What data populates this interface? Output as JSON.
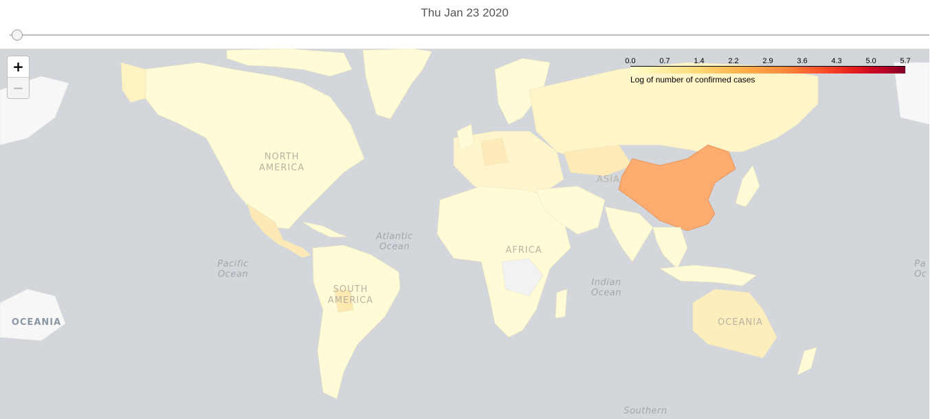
{
  "header": {
    "date": "Thu Jan 23 2020"
  },
  "slider": {
    "position_fraction": 0.0
  },
  "zoom": {
    "in_label": "+",
    "out_label": "−"
  },
  "legend": {
    "ticks": [
      "0.0",
      "0.7",
      "1.4",
      "2.2",
      "2.9",
      "3.6",
      "4.3",
      "5.0",
      "5.7"
    ],
    "caption": "Log of number of confirmed cases",
    "colors": [
      "#ffffcc",
      "#ffeda0",
      "#fed976",
      "#feb24c",
      "#fd8d3c",
      "#fc4e2a",
      "#e31a1c",
      "#bd0026",
      "#800026"
    ]
  },
  "map": {
    "ocean_color": "#d3d6da",
    "base_land_color": "#fffbd6",
    "highlight_color": "#fdab6f",
    "ocean_labels": {
      "atlantic": "Atlantic\nOcean",
      "pacific": "Pacific\nOcean",
      "indian": "Indian\nOcean",
      "southern": "Southern",
      "pacific_right": "Pa\nOc"
    },
    "continent_labels": {
      "north_america": "NORTH\nAMERICA",
      "south_america": "SOUTH\nAMERICA",
      "africa": "AFRICA",
      "asia": "ASIA",
      "oceania": "OCEANIA",
      "oceania_left": "OCEANIA"
    }
  }
}
